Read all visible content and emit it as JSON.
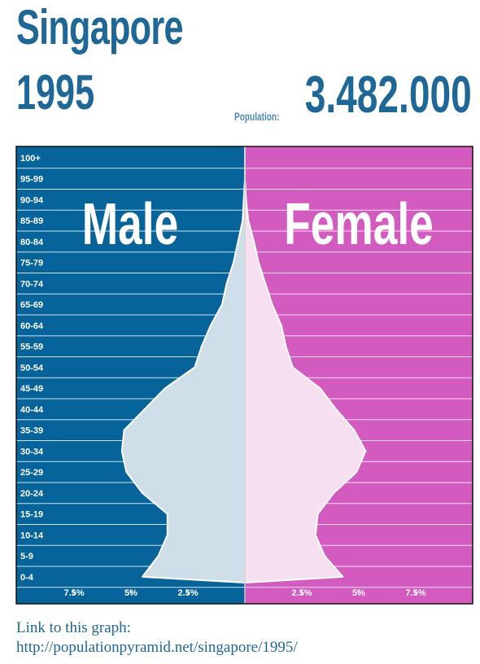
{
  "header": {
    "country": "Singapore",
    "year": "1995",
    "population_label": "Population:",
    "population_value": "3.482.000"
  },
  "footer": {
    "link_label": "Link to this graph:",
    "link_url": "http://populationpyramid.net/singapore/1995/"
  },
  "colors": {
    "male_bg": "#06649b",
    "female_bg": "#d35abf",
    "male_fill": "#cfdfea",
    "female_fill": "#f5dff0",
    "title": "#1f6797"
  },
  "chart_data": {
    "type": "area",
    "orientation": "horizontal-pyramid",
    "title": "",
    "male_label": "Male",
    "female_label": "Female",
    "unit": "% of population",
    "xlim": [
      0,
      10
    ],
    "x_ticks": [
      {
        "value": 7.5,
        "label": "7.5%"
      },
      {
        "value": 5,
        "label": "5%"
      },
      {
        "value": 2.5,
        "label": "2.5%"
      }
    ],
    "categories": [
      "100+",
      "95-99",
      "90-94",
      "85-89",
      "80-84",
      "75-79",
      "70-74",
      "65-69",
      "60-64",
      "55-59",
      "50-54",
      "45-49",
      "40-44",
      "35-39",
      "30-34",
      "25-29",
      "20-24",
      "15-19",
      "10-14",
      "5-9",
      "0-4"
    ],
    "series": [
      {
        "name": "Male",
        "values": [
          0.0,
          0.0,
          0.05,
          0.1,
          0.3,
          0.5,
          0.8,
          1.0,
          1.5,
          1.9,
          2.2,
          3.5,
          4.4,
          5.3,
          5.4,
          5.2,
          4.5,
          3.4,
          3.4,
          3.8,
          4.5
        ]
      },
      {
        "name": "Female",
        "values": [
          0.0,
          0.0,
          0.05,
          0.15,
          0.4,
          0.6,
          0.9,
          1.2,
          1.6,
          1.8,
          2.1,
          3.3,
          4.0,
          4.8,
          5.3,
          4.9,
          3.9,
          3.2,
          3.1,
          3.5,
          4.3
        ]
      }
    ]
  }
}
